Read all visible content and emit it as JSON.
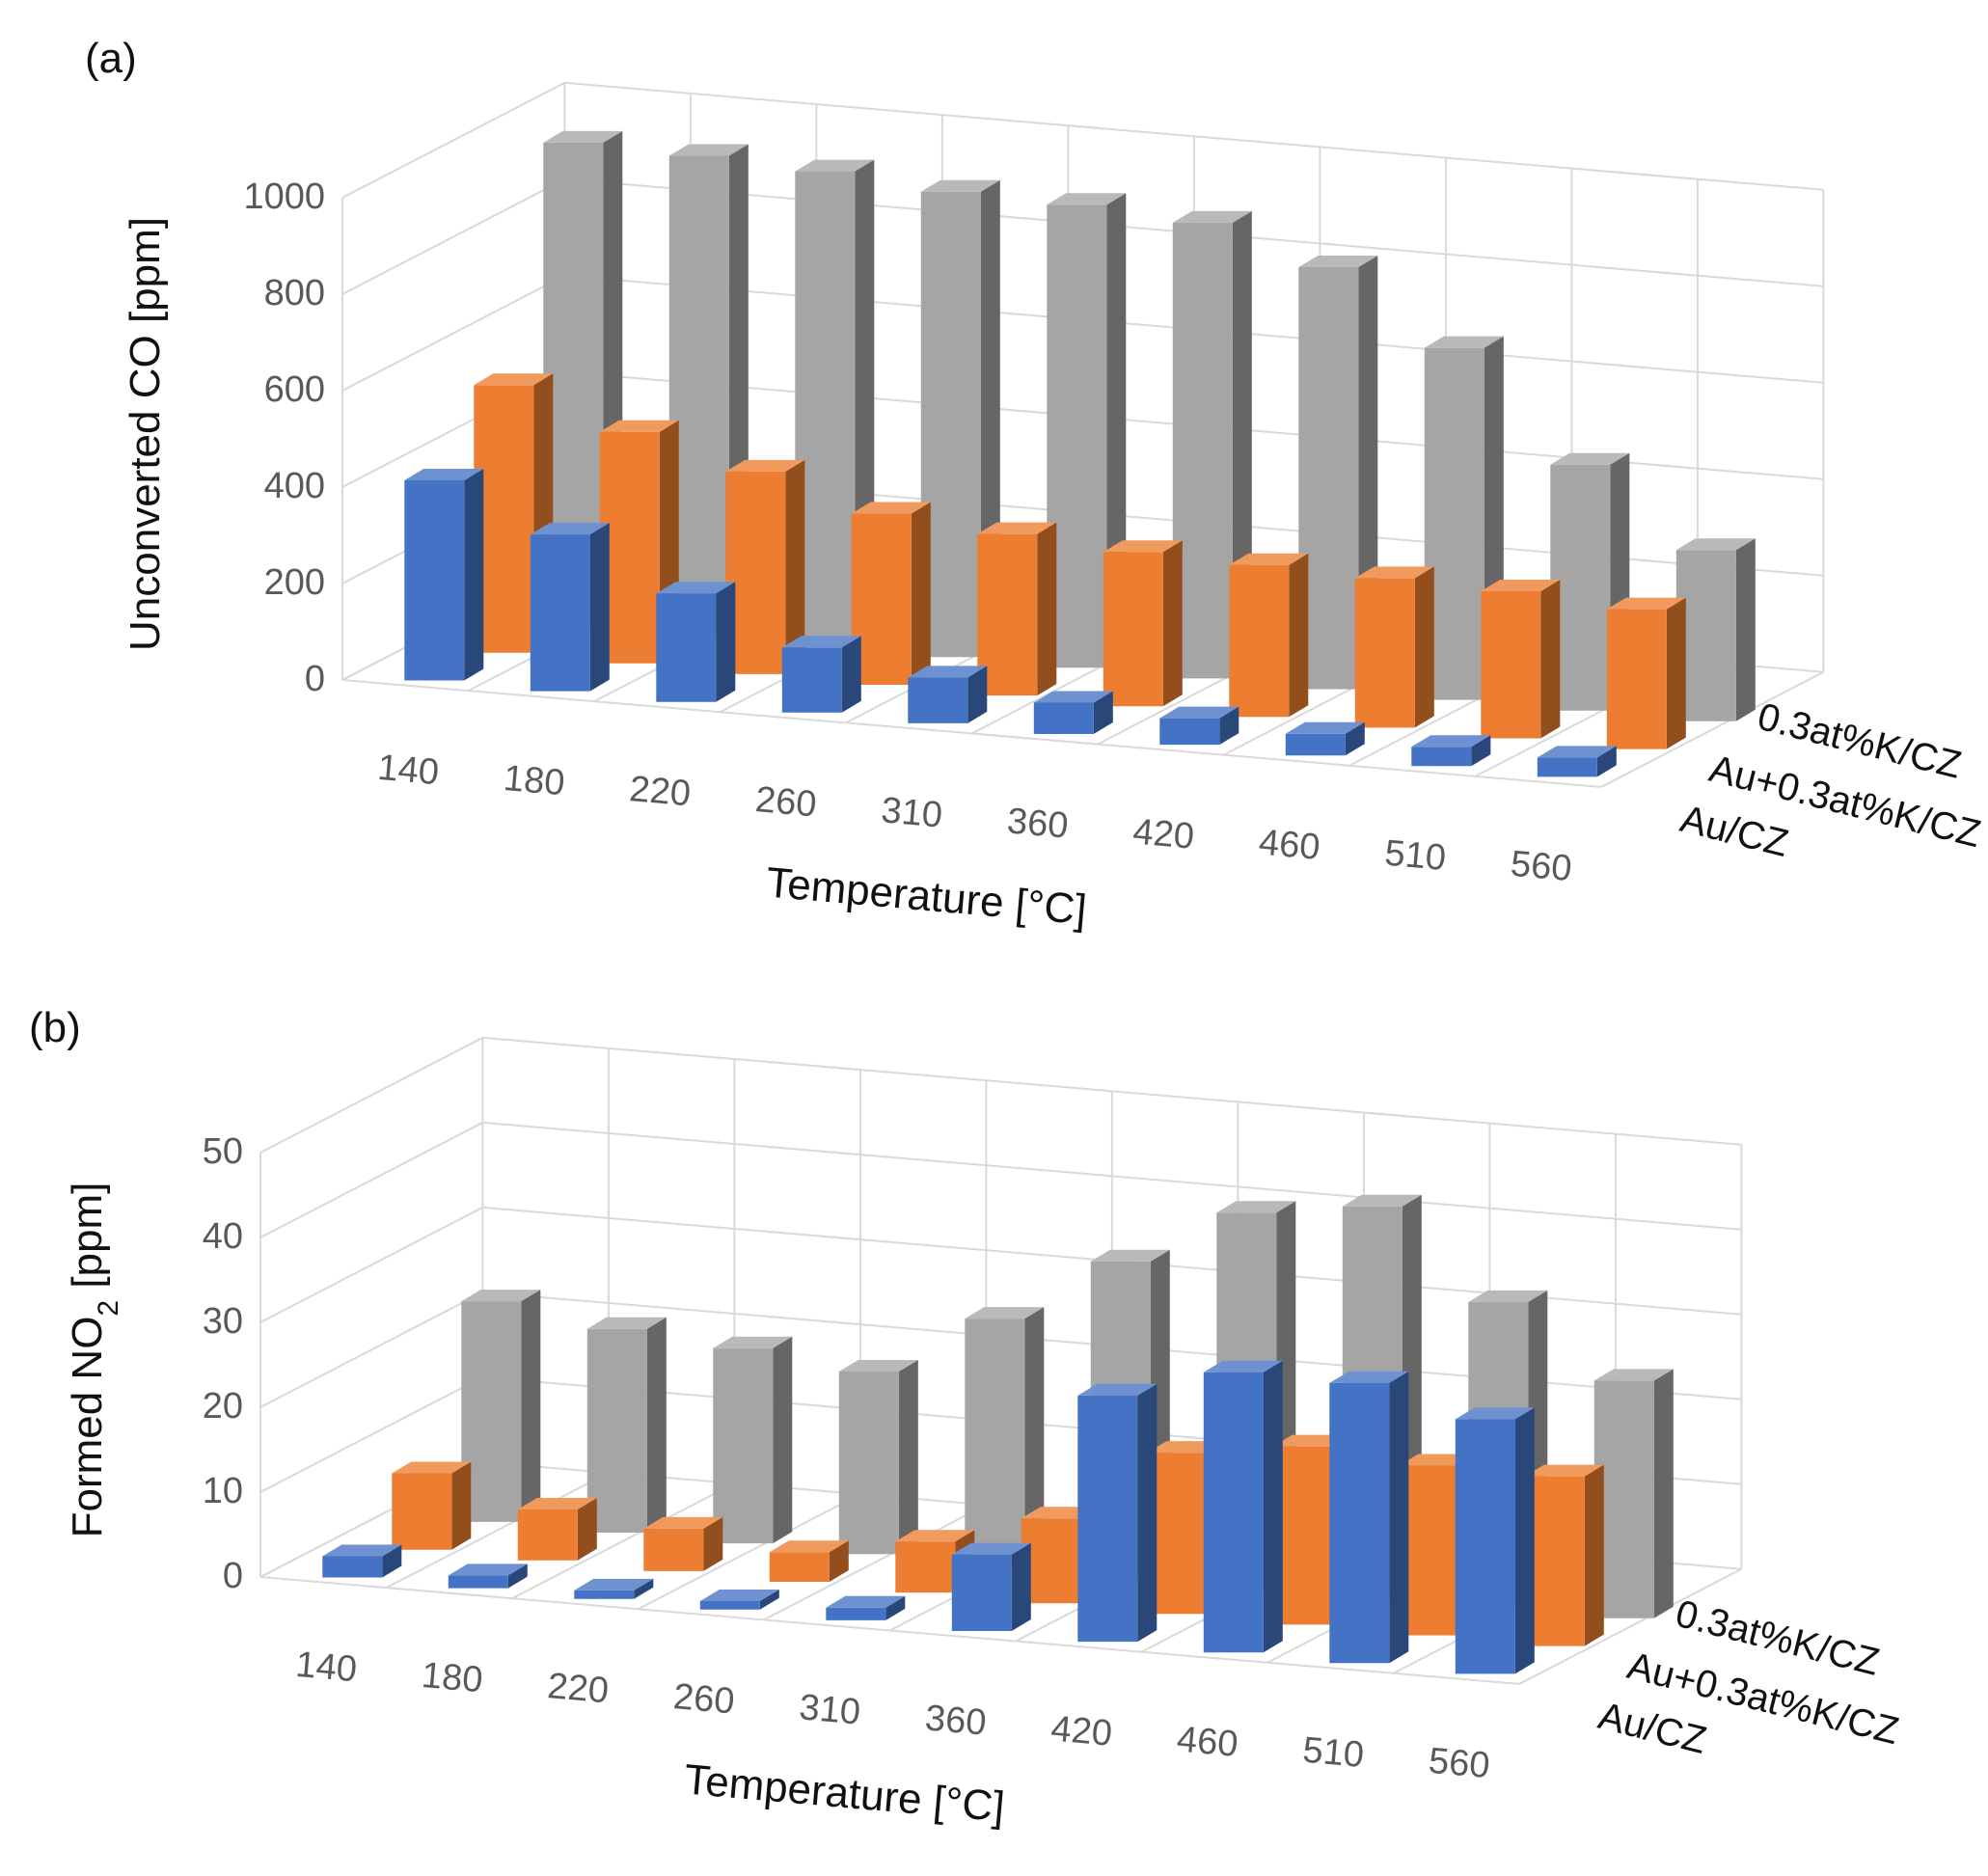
{
  "chart_data": [
    {
      "type": "bar",
      "panel_label": "(a)",
      "categories": [
        "140",
        "180",
        "220",
        "260",
        "310",
        "360",
        "420",
        "460",
        "510",
        "560"
      ],
      "xlabel": "Temperature [°C]",
      "ylabel": "Unconverted CO [ppm]",
      "ylim": [
        0,
        1000
      ],
      "yticks": [
        "0",
        "200",
        "400",
        "600",
        "800",
        "1000"
      ],
      "series": [
        {
          "name": "Au/CZ",
          "color": "#4472c4",
          "values": [
            415,
            325,
            225,
            135,
            95,
            65,
            55,
            45,
            40,
            40
          ]
        },
        {
          "name": "Au+0.3at%K/CZ",
          "color": "#ed7d31",
          "values": [
            555,
            480,
            420,
            355,
            335,
            320,
            315,
            310,
            305,
            290
          ]
        },
        {
          "name": "0.3at%K/CZ",
          "color": "#a5a5a5",
          "values": [
            1000,
            995,
            985,
            965,
            960,
            945,
            875,
            730,
            510,
            355
          ]
        }
      ]
    },
    {
      "type": "bar",
      "panel_label": "(b)",
      "categories": [
        "140",
        "180",
        "220",
        "260",
        "310",
        "360",
        "420",
        "460",
        "510",
        "560"
      ],
      "xlabel": "Temperature [°C]",
      "ylabel_prefix": "Formed NO",
      "ylabel_sub": "2",
      "ylabel_suffix": " [ppm]",
      "ylim": [
        0,
        50
      ],
      "yticks": [
        "0",
        "10",
        "20",
        "30",
        "40",
        "50"
      ],
      "series": [
        {
          "name": "Au/CZ",
          "color": "#4472c4",
          "values": [
            2.5,
            1.5,
            1,
            1,
            1.5,
            9,
            29,
            33,
            33,
            30
          ]
        },
        {
          "name": "Au+0.3at%K/CZ",
          "color": "#ed7d31",
          "values": [
            9,
            6,
            5,
            3.5,
            6,
            10,
            19,
            21,
            20,
            20
          ]
        },
        {
          "name": "0.3at%K/CZ",
          "color": "#a5a5a5",
          "values": [
            26,
            24,
            23,
            21.5,
            29,
            37,
            44,
            46,
            36,
            28
          ]
        }
      ]
    }
  ]
}
